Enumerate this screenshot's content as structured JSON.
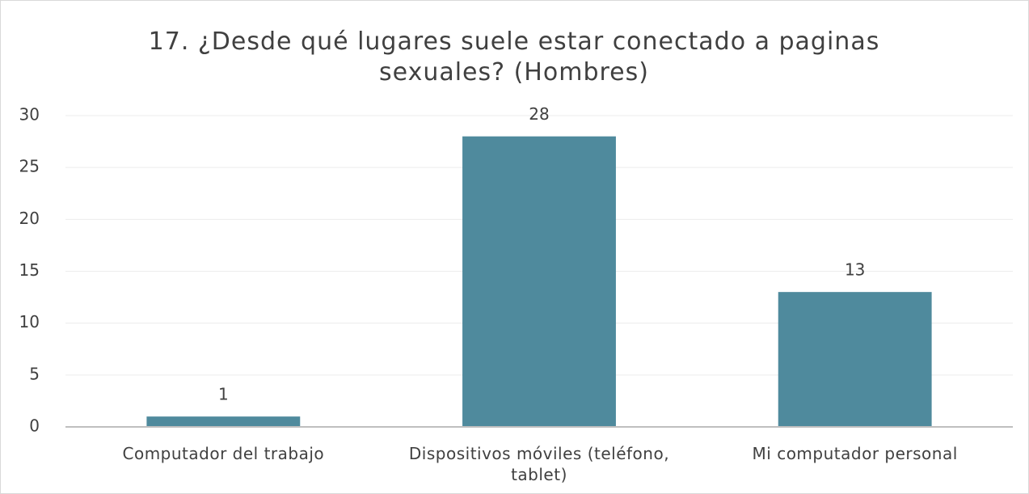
{
  "chart_data": {
    "type": "bar",
    "title": "17. ¿Desde qué lugares suele estar conectado a paginas sexuales? (Hombres)",
    "categories": [
      "Computador del trabajo",
      "Dispositivos móviles (teléfono, tablet)",
      "Mi computador personal"
    ],
    "values": [
      1,
      28,
      13
    ],
    "color": "#4f8a9d",
    "ylim": [
      0,
      30
    ],
    "yticks": [
      0,
      5,
      10,
      15,
      20,
      25,
      30
    ],
    "grid": true
  }
}
